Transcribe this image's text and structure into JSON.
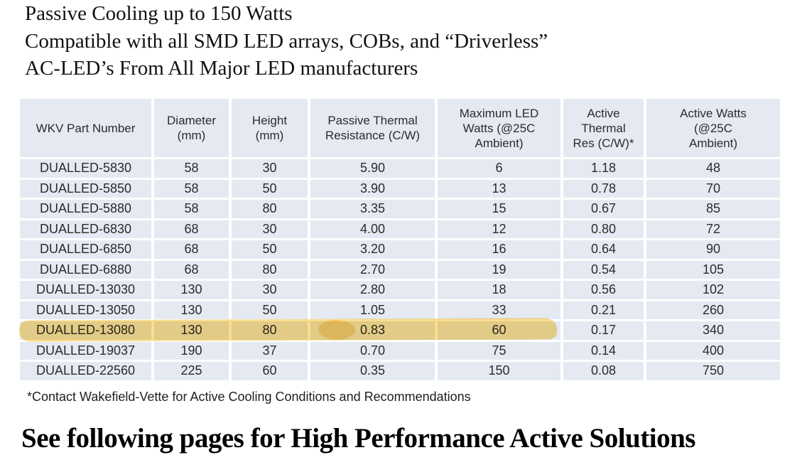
{
  "intro": {
    "line1": "Passive Cooling up to 150 Watts",
    "line2": "Compatible with all SMD LED arrays, COBs, and “Driverless”",
    "line3": "AC-LED’s From All Major LED manufacturers"
  },
  "table": {
    "columns": [
      "WKV Part Number",
      "Diameter\n(mm)",
      "Height\n(mm)",
      "Passive Thermal\nResistance (C/W)",
      "Maximum LED\nWatts (@25C\nAmbient)",
      "Active Thermal\nRes (C/W)*",
      "Active Watts\n(@25C\nAmbient)"
    ],
    "rows": [
      [
        "DUALLED-5830",
        "58",
        "30",
        "5.90",
        "6",
        "1.18",
        "48"
      ],
      [
        "DUALLED-5850",
        "58",
        "50",
        "3.90",
        "13",
        "0.78",
        "70"
      ],
      [
        "DUALLED-5880",
        "58",
        "80",
        "3.35",
        "15",
        "0.67",
        "85"
      ],
      [
        "DUALLED-6830",
        "68",
        "30",
        "4.00",
        "12",
        "0.80",
        "72"
      ],
      [
        "DUALLED-6850",
        "68",
        "50",
        "3.20",
        "16",
        "0.64",
        "90"
      ],
      [
        "DUALLED-6880",
        "68",
        "80",
        "2.70",
        "19",
        "0.54",
        "105"
      ],
      [
        "DUALLED-13030",
        "130",
        "30",
        "2.80",
        "18",
        "0.56",
        "102"
      ],
      [
        "DUALLED-13050",
        "130",
        "50",
        "1.05",
        "33",
        "0.21",
        "260"
      ],
      [
        "DUALLED-13080",
        "130",
        "80",
        "0.83",
        "60",
        "0.17",
        "340"
      ],
      [
        "DUALLED-19037",
        "190",
        "37",
        "0.70",
        "75",
        "0.14",
        "400"
      ],
      [
        "DUALLED-22560",
        "225",
        "60",
        "0.35",
        "150",
        "0.08",
        "750"
      ]
    ],
    "highlighted_row": "DUALLED-13080"
  },
  "footnote": "*Contact Wakefield-Vette for Active Cooling Conditions and Recommendations",
  "footer_heading": "See following pages for High Performance Active Solutions",
  "colors": {
    "cell_bg": "#e5eaf2",
    "highlighter": "#fbdc84",
    "text": "#2b2b2b"
  }
}
